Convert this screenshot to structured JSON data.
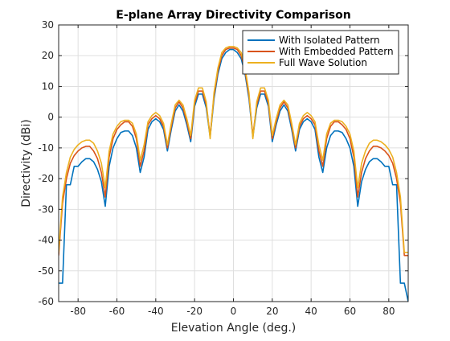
{
  "chart_data": {
    "type": "line",
    "title": "E-plane Array Directivity Comparison",
    "xlabel": "Elevation Angle (deg.)",
    "ylabel": "Directivity (dBi)",
    "xlim": [
      -90,
      90
    ],
    "ylim": [
      -60,
      30
    ],
    "xticks": [
      -80,
      -60,
      -40,
      -20,
      0,
      20,
      40,
      60,
      80
    ],
    "yticks": [
      -60,
      -50,
      -40,
      -30,
      -20,
      -10,
      0,
      10,
      20,
      30
    ],
    "xtick_labels": [
      "-80",
      "-60",
      "-40",
      "-20",
      "0",
      "20",
      "40",
      "60",
      "80"
    ],
    "ytick_labels": [
      "-60",
      "-50",
      "-40",
      "-30",
      "-20",
      "-10",
      "0",
      "10",
      "20",
      "30"
    ],
    "grid": true,
    "legend_position": "top-right",
    "series": [
      {
        "name": "With Isolated Pattern",
        "color": "#0072BD",
        "x": [
          -90,
          -88,
          -86,
          -84,
          -82,
          -80,
          -78,
          -76,
          -74,
          -72,
          -70,
          -68,
          -66,
          -64,
          -62,
          -60,
          -58,
          -56,
          -54,
          -52,
          -50,
          -48,
          -46,
          -44,
          -42,
          -40,
          -38,
          -36,
          -34,
          -32,
          -30,
          -28,
          -26,
          -24,
          -22,
          -20,
          -18,
          -16,
          -14,
          -12,
          -10,
          -8,
          -6,
          -4,
          -2,
          0,
          2,
          4,
          6,
          8,
          10,
          12,
          14,
          16,
          18,
          20,
          22,
          24,
          26,
          28,
          30,
          32,
          34,
          36,
          38,
          40,
          42,
          44,
          46,
          48,
          50,
          52,
          54,
          56,
          58,
          60,
          62,
          64,
          66,
          68,
          70,
          72,
          74,
          76,
          78,
          80,
          82,
          84,
          86,
          88,
          90
        ],
        "y": [
          -54,
          -54,
          -22,
          -22,
          -16,
          -16,
          -14.5,
          -13.5,
          -13.5,
          -14.5,
          -17,
          -21,
          -29,
          -16,
          -10,
          -7,
          -5,
          -4.5,
          -4.5,
          -6,
          -10,
          -18,
          -13,
          -4,
          -1.5,
          -0.5,
          -1.5,
          -4,
          -11,
          -4,
          2,
          4,
          2,
          -2.5,
          -8,
          3.5,
          7.5,
          7.5,
          3,
          -6.5,
          6,
          14,
          19,
          21,
          22,
          22,
          21,
          19,
          14,
          6,
          -6.5,
          3,
          7.5,
          7.5,
          3.5,
          -8,
          -2.5,
          2,
          4,
          2,
          -4,
          -11,
          -4,
          -1.5,
          -0.5,
          -1.5,
          -4,
          -13,
          -18,
          -10,
          -6,
          -4.5,
          -4.5,
          -5,
          -7,
          -10,
          -16,
          -29,
          -21,
          -17,
          -14.5,
          -13.5,
          -13.5,
          -14.5,
          -16,
          -16,
          -22,
          -22,
          -54,
          -54,
          -60
        ]
      },
      {
        "name": "With Embedded Pattern",
        "color": "#D95319",
        "x": [
          -90,
          -88,
          -86,
          -84,
          -82,
          -80,
          -78,
          -76,
          -74,
          -72,
          -70,
          -68,
          -66,
          -64,
          -62,
          -60,
          -58,
          -56,
          -54,
          -52,
          -50,
          -48,
          -46,
          -44,
          -42,
          -40,
          -38,
          -36,
          -34,
          -32,
          -30,
          -28,
          -26,
          -24,
          -22,
          -20,
          -18,
          -16,
          -14,
          -12,
          -10,
          -8,
          -6,
          -4,
          -2,
          0,
          2,
          4,
          6,
          8,
          10,
          12,
          14,
          16,
          18,
          20,
          22,
          24,
          26,
          28,
          30,
          32,
          34,
          36,
          38,
          40,
          42,
          44,
          46,
          48,
          50,
          52,
          54,
          56,
          58,
          60,
          62,
          64,
          66,
          68,
          70,
          72,
          74,
          76,
          78,
          80,
          82,
          84,
          86,
          88,
          90
        ],
        "y": [
          -45,
          -28,
          -20,
          -15,
          -12.5,
          -11,
          -10,
          -9.5,
          -9.5,
          -11,
          -13.5,
          -18,
          -26,
          -13,
          -7,
          -4,
          -2.5,
          -1.5,
          -1.5,
          -3,
          -7,
          -16,
          -11,
          -2.5,
          -0.5,
          0.5,
          -0.5,
          -3,
          -10,
          -3,
          3,
          5,
          3,
          -1.5,
          -7,
          4.5,
          8.5,
          8.5,
          4,
          -6,
          7,
          15,
          20,
          22,
          22.5,
          22.5,
          22,
          20,
          15,
          7,
          -6,
          4,
          8.5,
          8.5,
          4.5,
          -7,
          -1.5,
          3,
          5,
          3,
          -3,
          -10,
          -3,
          -0.5,
          0.5,
          -0.5,
          -2.5,
          -11,
          -16,
          -7,
          -3,
          -1.5,
          -1.5,
          -2.5,
          -4,
          -7,
          -13,
          -26,
          -18,
          -13.5,
          -11,
          -9.5,
          -9.5,
          -10,
          -11,
          -12.5,
          -15,
          -20,
          -28,
          -45,
          -45
        ]
      },
      {
        "name": "Full Wave Solution",
        "color": "#EDB120",
        "x": [
          -90,
          -88,
          -86,
          -84,
          -82,
          -80,
          -78,
          -76,
          -74,
          -72,
          -70,
          -68,
          -66,
          -64,
          -62,
          -60,
          -58,
          -56,
          -54,
          -52,
          -50,
          -48,
          -46,
          -44,
          -42,
          -40,
          -38,
          -36,
          -34,
          -32,
          -30,
          -28,
          -26,
          -24,
          -22,
          -20,
          -18,
          -16,
          -14,
          -12,
          -10,
          -8,
          -6,
          -4,
          -2,
          0,
          2,
          4,
          6,
          8,
          10,
          12,
          14,
          16,
          18,
          20,
          22,
          24,
          26,
          28,
          30,
          32,
          34,
          36,
          38,
          40,
          42,
          44,
          46,
          48,
          50,
          52,
          54,
          56,
          58,
          60,
          62,
          64,
          66,
          68,
          70,
          72,
          74,
          76,
          78,
          80,
          82,
          84,
          86,
          88,
          90
        ],
        "y": [
          -44,
          -26,
          -18,
          -13,
          -10.5,
          -9,
          -8,
          -7.5,
          -7.5,
          -8.5,
          -11,
          -15,
          -23,
          -11,
          -5.5,
          -3,
          -1.5,
          -1,
          -1,
          -2,
          -5.5,
          -14,
          -9,
          -1.5,
          0.5,
          1.5,
          0.5,
          -2,
          -9,
          -2,
          4,
          5.5,
          4,
          -0.5,
          -6,
          5.5,
          9.5,
          9.5,
          5,
          -7,
          8,
          16,
          21,
          22.5,
          23,
          23,
          22.5,
          21,
          16,
          8,
          -7,
          5,
          9.5,
          9.5,
          5.5,
          -6,
          -0.5,
          4,
          5.5,
          4,
          -2,
          -9,
          -2,
          0.5,
          1.5,
          0.5,
          -1.5,
          -9,
          -14,
          -5.5,
          -2,
          -1,
          -1,
          -1.5,
          -3,
          -5.5,
          -11,
          -23,
          -15,
          -11,
          -8.5,
          -7.5,
          -7.5,
          -8,
          -9,
          -10.5,
          -13,
          -18,
          -26,
          -44,
          -44
        ]
      }
    ]
  }
}
